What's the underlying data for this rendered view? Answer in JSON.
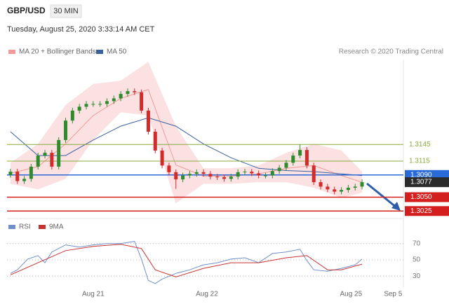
{
  "header": {
    "symbol": "GBP/USD",
    "interval": "30 MIN",
    "timestamp": "Tuesday, August 25, 2020 3:33:14 AM CET",
    "credit": "Research © 2020 Trading Central"
  },
  "chart_data": [
    {
      "type": "candlestick",
      "xlim": [
        -0.5,
        57
      ],
      "ylim": [
        1.3014,
        1.3298
      ],
      "up_color": "#2e8b2e",
      "down_color": "#d42a2a",
      "open": [
        1.309,
        1.3096,
        1.3079,
        1.3083,
        1.3105,
        1.3125,
        1.313,
        1.3105,
        1.3153,
        1.3188,
        1.3206,
        1.3213,
        1.3218,
        1.3218,
        1.3218,
        1.3223,
        1.3228,
        1.3236,
        1.3241,
        1.3239,
        1.3206,
        1.3168,
        1.3134,
        1.3107,
        1.3095,
        1.3082,
        1.3089,
        1.3092,
        1.3095,
        1.3092,
        1.3087,
        1.3086,
        1.3083,
        1.3087,
        1.3095,
        1.3096,
        1.3093,
        1.3089,
        1.3089,
        1.3097,
        1.3103,
        1.3112,
        1.3125,
        1.3135,
        1.3107,
        1.3077,
        1.3069,
        1.3064,
        1.306,
        1.3063,
        1.3067,
        1.3069
      ],
      "high": [
        1.3101,
        1.3101,
        1.3088,
        1.311,
        1.313,
        1.3135,
        1.3135,
        1.3158,
        1.3193,
        1.3211,
        1.3218,
        1.3223,
        1.3223,
        1.3223,
        1.3228,
        1.3233,
        1.3241,
        1.3246,
        1.3246,
        1.3244,
        1.3211,
        1.3173,
        1.3139,
        1.3112,
        1.31,
        1.3094,
        1.3097,
        1.31,
        1.31,
        1.3097,
        1.3092,
        1.3091,
        1.3092,
        1.31,
        1.3101,
        1.3101,
        1.3098,
        1.3094,
        1.3102,
        1.3108,
        1.3117,
        1.313,
        1.3145,
        1.314,
        1.3112,
        1.3082,
        1.3074,
        1.3069,
        1.3068,
        1.3072,
        1.3074,
        1.3082
      ],
      "low": [
        1.3085,
        1.3074,
        1.3074,
        1.3078,
        1.31,
        1.312,
        1.31,
        1.31,
        1.3148,
        1.3183,
        1.3201,
        1.3208,
        1.3213,
        1.3213,
        1.3213,
        1.3218,
        1.3223,
        1.3231,
        1.3234,
        1.3201,
        1.3163,
        1.3129,
        1.3102,
        1.309,
        1.3065,
        1.3077,
        1.3084,
        1.3087,
        1.3087,
        1.3082,
        1.3081,
        1.3078,
        1.3078,
        1.3082,
        1.309,
        1.3088,
        1.3084,
        1.3084,
        1.3084,
        1.3092,
        1.3098,
        1.3107,
        1.312,
        1.3102,
        1.3072,
        1.3064,
        1.3059,
        1.3055,
        1.3055,
        1.3058,
        1.3062,
        1.3064
      ],
      "close": [
        1.3096,
        1.3079,
        1.3083,
        1.3105,
        1.3125,
        1.313,
        1.3105,
        1.3153,
        1.3188,
        1.3206,
        1.3213,
        1.3218,
        1.3218,
        1.3218,
        1.3223,
        1.3228,
        1.3236,
        1.3241,
        1.3239,
        1.3206,
        1.3168,
        1.3134,
        1.3107,
        1.3095,
        1.3082,
        1.3089,
        1.3092,
        1.3095,
        1.3092,
        1.3087,
        1.3086,
        1.3083,
        1.3087,
        1.3095,
        1.3096,
        1.3093,
        1.3089,
        1.3089,
        1.3097,
        1.3103,
        1.3112,
        1.3125,
        1.3135,
        1.3107,
        1.3077,
        1.3069,
        1.3064,
        1.306,
        1.3063,
        1.3067,
        1.3069,
        1.3077
      ],
      "overlays": [
        {
          "name": "MA 20 + Bollinger Bands",
          "type": "band",
          "color": "#f29a9a",
          "x": [
            0,
            4,
            8,
            12,
            16,
            20,
            24,
            28,
            32,
            36,
            40,
            44,
            48,
            51
          ],
          "upper": [
            1.3112,
            1.3146,
            1.3216,
            1.3254,
            1.326,
            1.3294,
            1.3178,
            1.3102,
            1.3102,
            1.3107,
            1.313,
            1.3146,
            1.3134,
            1.3096
          ],
          "lower": [
            1.3074,
            1.3064,
            1.3083,
            1.3153,
            1.3203,
            1.3197,
            1.3039,
            1.3074,
            1.3074,
            1.3077,
            1.3077,
            1.3067,
            1.3049,
            1.3058
          ],
          "values": [
            1.3093,
            1.3105,
            1.3146,
            1.3197,
            1.3228,
            1.3244,
            1.3108,
            1.3088,
            1.3088,
            1.3092,
            1.3102,
            1.3107,
            1.3089,
            1.3077
          ]
        },
        {
          "name": "MA 50",
          "type": "line",
          "color": "#3a5fa0",
          "x": [
            0,
            4,
            8,
            12,
            16,
            20,
            24,
            28,
            32,
            36,
            40,
            44,
            48,
            51
          ],
          "values": [
            1.3168,
            1.3125,
            1.3125,
            1.3153,
            1.3178,
            1.3193,
            1.3178,
            1.3146,
            1.3121,
            1.3102,
            1.3098,
            1.3096,
            1.3092,
            1.3089
          ]
        }
      ],
      "levels": [
        {
          "value": 1.3145,
          "label": "1.3145",
          "color": "#8aab3c",
          "line": true,
          "tag": false
        },
        {
          "value": 1.3115,
          "label": "1.3115",
          "color": "#8aab3c",
          "line": true,
          "tag": false
        },
        {
          "value": 1.309,
          "label": "1.3090",
          "color": "#2a6ad8",
          "line": true,
          "tag": true
        },
        {
          "value": 1.3077,
          "label": "1.3077",
          "color": "#2b2b2b",
          "line": false,
          "tag": true
        },
        {
          "value": 1.305,
          "label": "1.3050",
          "color": "#d41f1f",
          "line": true,
          "tag": true
        },
        {
          "value": 1.3025,
          "label": "1.3025",
          "color": "#d41f1f",
          "line": true,
          "tag": true
        }
      ]
    },
    {
      "type": "line",
      "xlim": [
        -0.5,
        57
      ],
      "ylim": [
        20,
        80
      ],
      "yticks": [
        30,
        50,
        70
      ],
      "grid": true,
      "xticks": [
        {
          "value": 12,
          "label": "Aug 21"
        },
        {
          "value": 28.5,
          "label": "Aug 22"
        },
        {
          "value": 49.4,
          "label": "Aug 25"
        },
        {
          "value": 55.5,
          "label": "Sep 5"
        }
      ],
      "series": [
        {
          "name": "RSI",
          "color": "#6f8fc8",
          "x": [
            0,
            1,
            2.5,
            4,
            5,
            6,
            8,
            10,
            12,
            14,
            16,
            18,
            19,
            20,
            21,
            22,
            24,
            26,
            28,
            30,
            32,
            34,
            36,
            38,
            40,
            42,
            43,
            44,
            46,
            48,
            50,
            51
          ],
          "values": [
            33.5,
            37.8,
            50.9,
            55.2,
            46.5,
            59.6,
            68.3,
            65.7,
            68.3,
            70,
            70,
            72.6,
            50.9,
            24.8,
            21,
            26.5,
            33.5,
            37.8,
            43.9,
            46.5,
            50.9,
            52.6,
            46.5,
            57.8,
            59.6,
            63,
            49.1,
            37.8,
            36.1,
            39.6,
            43.9,
            50.9
          ]
        },
        {
          "name": "9MA",
          "color": "#c83232",
          "x": [
            0,
            4,
            8,
            12,
            16,
            19,
            21,
            24,
            28,
            32,
            36,
            40,
            43,
            46,
            48,
            51
          ],
          "values": [
            31.7,
            46.5,
            61.3,
            66.5,
            69.1,
            63.9,
            37.8,
            29.1,
            39.6,
            46.5,
            46.5,
            52.6,
            55.2,
            37.8,
            37.8,
            44.8
          ]
        }
      ]
    }
  ]
}
